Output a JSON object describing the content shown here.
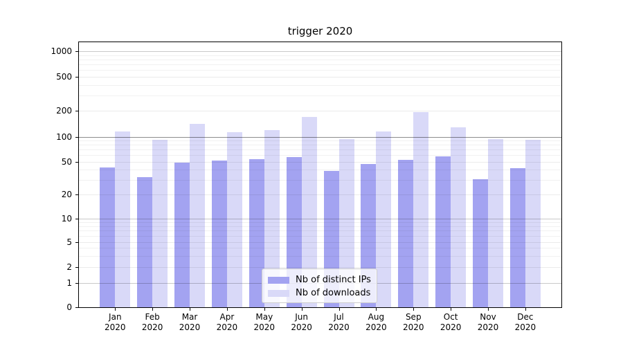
{
  "chart_data": {
    "type": "bar",
    "title": "trigger 2020",
    "categories": [
      "Jan 2020",
      "Feb 2020",
      "Mar 2020",
      "Apr 2020",
      "May 2020",
      "Jun 2020",
      "Jul 2020",
      "Aug 2020",
      "Sep 2020",
      "Oct 2020",
      "Nov 2020",
      "Dec 2020"
    ],
    "x_months": [
      "Jan",
      "Feb",
      "Mar",
      "Apr",
      "May",
      "Jun",
      "Jul",
      "Aug",
      "Sep",
      "Oct",
      "Nov",
      "Dec"
    ],
    "x_year": "2020",
    "series": [
      {
        "name": "Nb of distinct IPs",
        "color": "#a3a3f1",
        "values": [
          43,
          33,
          49,
          52,
          54,
          58,
          39,
          47,
          53,
          59,
          31,
          42
        ]
      },
      {
        "name": "Nb of downloads",
        "color": "#d9d9f8",
        "values": [
          118,
          94,
          142,
          116,
          121,
          172,
          95,
          118,
          195,
          130,
          96,
          93
        ]
      }
    ],
    "yscale": "symlog",
    "yticks": [
      0,
      1,
      2,
      5,
      10,
      20,
      50,
      100,
      200,
      500,
      1000
    ],
    "ytick_labels": [
      "0",
      "1",
      "2",
      "5",
      "10",
      "20",
      "50",
      "100",
      "200",
      "500",
      "1000"
    ],
    "ylim": [
      0,
      1300
    ],
    "grid": true,
    "legend_position": "lower center",
    "axis_color": "#000000",
    "grid_minor_color": "#efefef",
    "grid_major_color": "#c9c9c9",
    "grid_emphasis_color": "#8a8a8a"
  }
}
